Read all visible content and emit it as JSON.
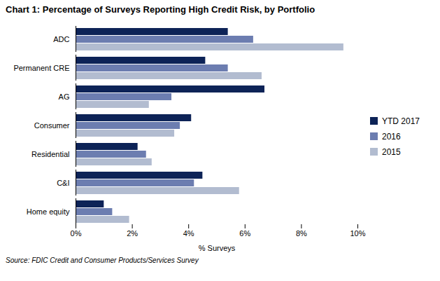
{
  "chart_data": {
    "type": "bar",
    "orientation": "horizontal",
    "title": "Chart 1: Percentage of Surveys Reporting High Credit Risk, by Portfolio",
    "categories": [
      "Home equity",
      "C&I",
      "Residential",
      "Consumer",
      "AG",
      "Permanent CRE",
      "ADC"
    ],
    "series": [
      {
        "name": "YTD 2017",
        "color": "#0d2357",
        "values": [
          1.0,
          4.5,
          2.2,
          4.1,
          6.7,
          4.6,
          5.4
        ]
      },
      {
        "name": "2016",
        "color": "#6c7db0",
        "values": [
          1.3,
          4.2,
          2.5,
          3.7,
          3.4,
          5.4,
          6.3
        ]
      },
      {
        "name": "2015",
        "color": "#b2bcd0",
        "values": [
          1.9,
          5.8,
          2.7,
          3.5,
          2.6,
          6.6,
          9.5
        ]
      }
    ],
    "xlabel": "% Surveys",
    "xlim": [
      0,
      10
    ],
    "xticks": [
      {
        "value": 0,
        "label": "0%"
      },
      {
        "value": 2,
        "label": "2%"
      },
      {
        "value": 4,
        "label": "4%"
      },
      {
        "value": 6,
        "label": "6%"
      },
      {
        "value": 8,
        "label": "8%"
      },
      {
        "value": 10,
        "label": "10%"
      }
    ],
    "legend": "right",
    "grid": false,
    "annotations": [
      "Source: FDIC Credit and Consumer Products/Services Survey"
    ]
  }
}
